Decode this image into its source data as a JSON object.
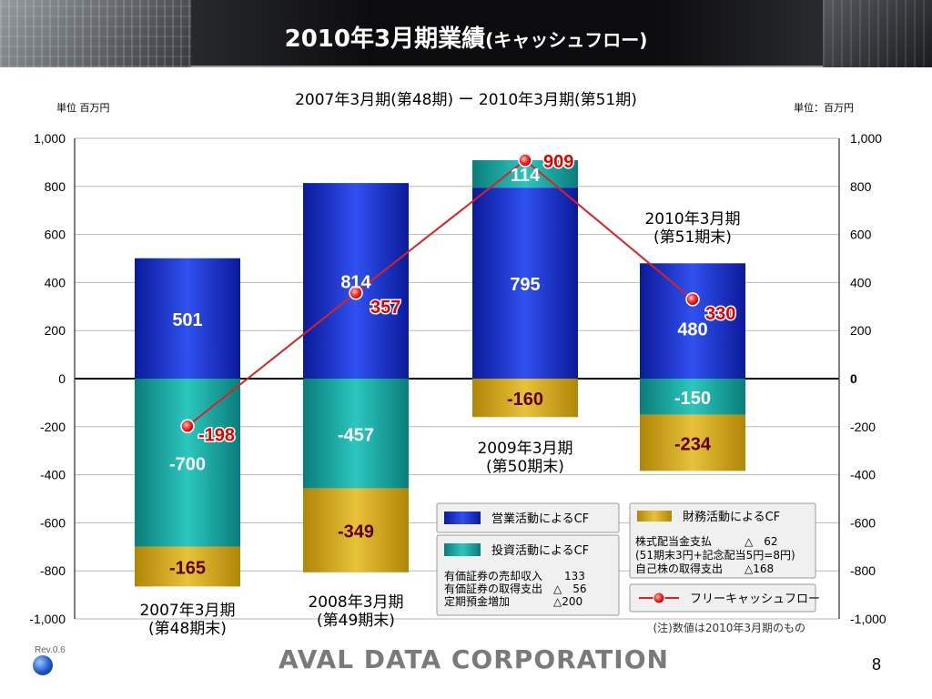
{
  "header": {
    "title": "2010年3月期業績",
    "title_sub": "(キャッシュフロー)"
  },
  "period_label": "2007年3月期(第48期) ー 2010年3月期(第51期)",
  "unit_left": "単位 百万円",
  "unit_right": "単位：百万円",
  "chart_data": {
    "type": "bar",
    "stacked": true,
    "categories": [
      "2007年3月期",
      "2008年3月期",
      "2009年3月期",
      "2010年3月期"
    ],
    "category_sublabels": [
      "(第48期末)",
      "(第49期末)",
      "(第50期末)",
      "(第51期末)"
    ],
    "ylim": [
      -1000,
      1000
    ],
    "yticks": [
      1000,
      800,
      600,
      400,
      200,
      0,
      -200,
      -400,
      -600,
      -800,
      -1000
    ],
    "ytick_labels": [
      "1,000",
      "800",
      "600",
      "400",
      "200",
      "0",
      "-200",
      "-400",
      "-600",
      "-800",
      "-1,000"
    ],
    "grid": true,
    "series": [
      {
        "name": "営業活動によるCF",
        "color": "#1a2fd0",
        "values": [
          501,
          814,
          795,
          480
        ]
      },
      {
        "name": "投資活動によるCF",
        "color": "#1aa6a0",
        "values": [
          -700,
          -457,
          114,
          -150
        ]
      },
      {
        "name": "財務活動によるCF",
        "color": "#d6a817",
        "values": [
          -165,
          -349,
          -160,
          -234
        ]
      }
    ],
    "line_series": {
      "name": "フリーキャッシュフロー",
      "color": "#e02020",
      "values": [
        -198,
        357,
        909,
        330
      ]
    },
    "legend": {
      "placement": "bottom-right",
      "investing_notes": [
        "有価証券の売却収入　　133",
        "有価証券の取得支出　△　56",
        "定期預金増加　　　　△200"
      ],
      "financing_notes": [
        "株式配当金支払　　　△　62",
        "(51期末3円+記念配当5円=8円)",
        "自己株の取得支出　　△168"
      ]
    },
    "note": "(注)数値は2010年3月期のもの"
  },
  "footer": {
    "rev": "Rev.0.6",
    "logo": "AVAL DATA CORPORATION",
    "page": "8"
  }
}
